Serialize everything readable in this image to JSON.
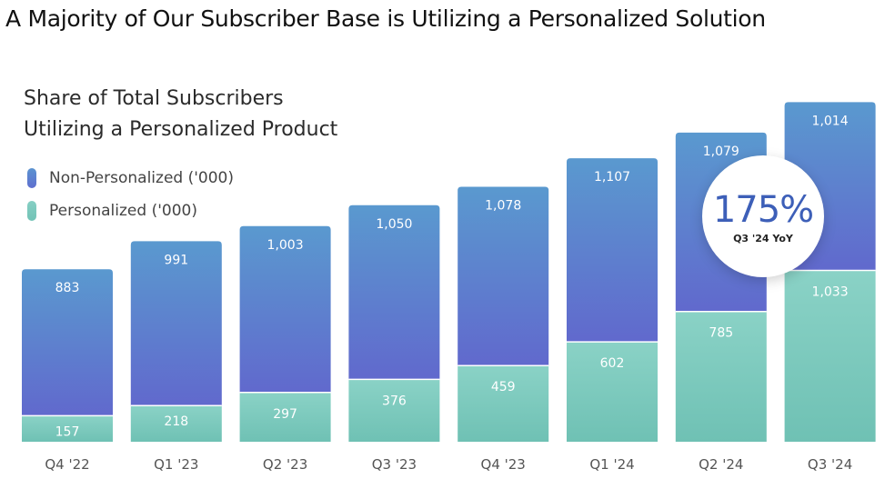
{
  "slide": {
    "title": "A Majority of Our Subscriber Base is Utilizing a Personalized Solution"
  },
  "chart_data": {
    "type": "bar",
    "stacked": true,
    "title_lines": [
      "Share of Total Subscribers",
      "Utilizing a Personalized Product"
    ],
    "categories": [
      "Q4 '22",
      "Q1 '23",
      "Q2 '23",
      "Q3 '23",
      "Q4 '23",
      "Q1 '24",
      "Q2 '24",
      "Q3 '24"
    ],
    "series": [
      {
        "name": "Personalized ('000)",
        "values": [
          157,
          218,
          297,
          376,
          459,
          602,
          785,
          1033
        ],
        "color": "#7cc9bd"
      },
      {
        "name": "Non-Personalized ('000)",
        "values": [
          883,
          991,
          1003,
          1050,
          1078,
          1107,
          1079,
          1014
        ],
        "color": "#5b7fcf"
      }
    ],
    "legend_order": [
      1,
      0
    ],
    "legend_position": "top-left",
    "ylim": [
      0,
      2100
    ],
    "grid": false,
    "annotation": {
      "value": "175%",
      "caption": "Q3 '24 YoY"
    }
  }
}
